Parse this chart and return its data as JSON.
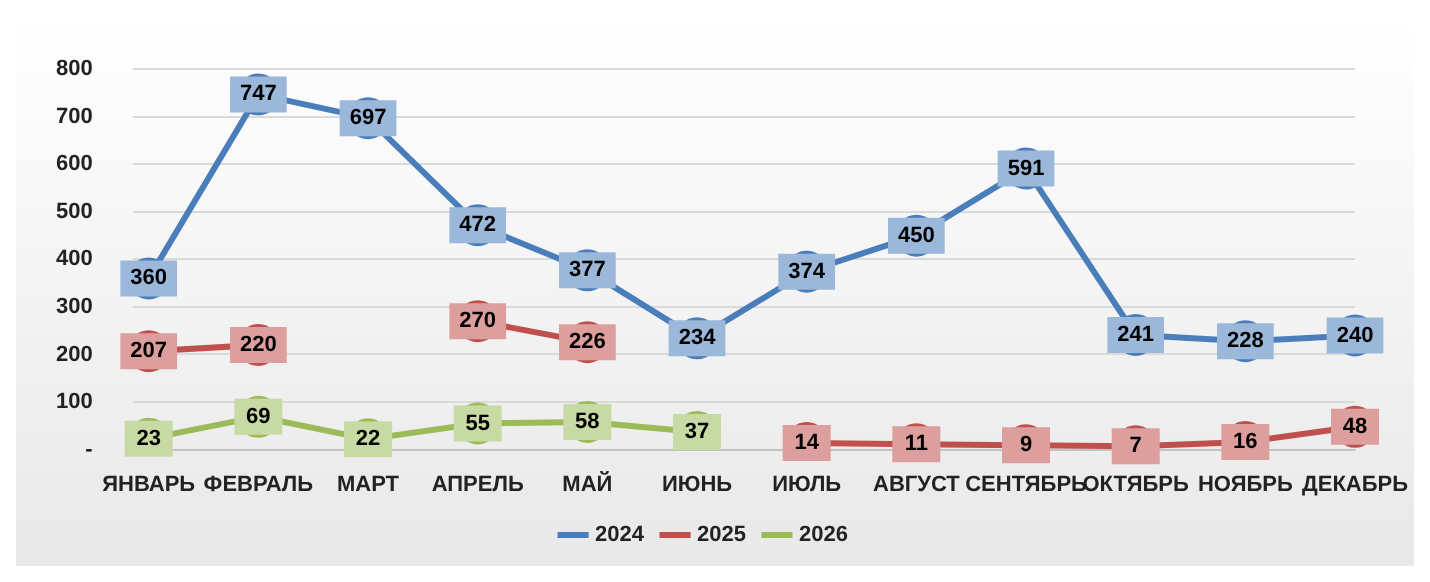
{
  "chart_data": {
    "type": "line",
    "categories": [
      "ЯНВАРЬ",
      "ФЕВРАЛЬ",
      "МАРТ",
      "АПРЕЛЬ",
      "МАЙ",
      "ИЮНЬ",
      "ИЮЛЬ",
      "АВГУСТ",
      "СЕНТЯБРЬ",
      "ОКТЯБРЬ",
      "НОЯБРЬ",
      "ДЕКАБРЬ"
    ],
    "series": [
      {
        "name": "2024",
        "color": "#4a7ebb",
        "values": [
          360,
          747,
          697,
          472,
          377,
          234,
          374,
          450,
          591,
          241,
          228,
          240
        ],
        "value_labels": [
          "360",
          "747",
          "697",
          "472",
          "377",
          "234",
          "374",
          "450",
          "591",
          "241",
          "228",
          "240"
        ]
      },
      {
        "name": "2025",
        "color": "#c0504d",
        "values": [
          207,
          220,
          null,
          270,
          226,
          null,
          14,
          11,
          9,
          7,
          16,
          48
        ],
        "value_labels": [
          "207",
          "220",
          null,
          "270",
          "226",
          null,
          "14",
          "11",
          "9",
          "7",
          "16",
          "48"
        ]
      },
      {
        "name": "2026",
        "color": "#9bbb59",
        "values": [
          23,
          69,
          22,
          55,
          58,
          37,
          null,
          null,
          null,
          null,
          null,
          null
        ],
        "value_labels": [
          "23",
          "69",
          "22",
          "55",
          "58",
          "37",
          null,
          null,
          null,
          null,
          null,
          null
        ]
      }
    ],
    "ylim": [
      0,
      800
    ],
    "yticks": [
      {
        "value": 0,
        "label": "-"
      },
      100,
      200,
      300,
      400,
      500,
      600,
      700,
      800
    ],
    "grid": "y",
    "legend": "bottom",
    "marker": "circle",
    "line_style": "solid"
  }
}
